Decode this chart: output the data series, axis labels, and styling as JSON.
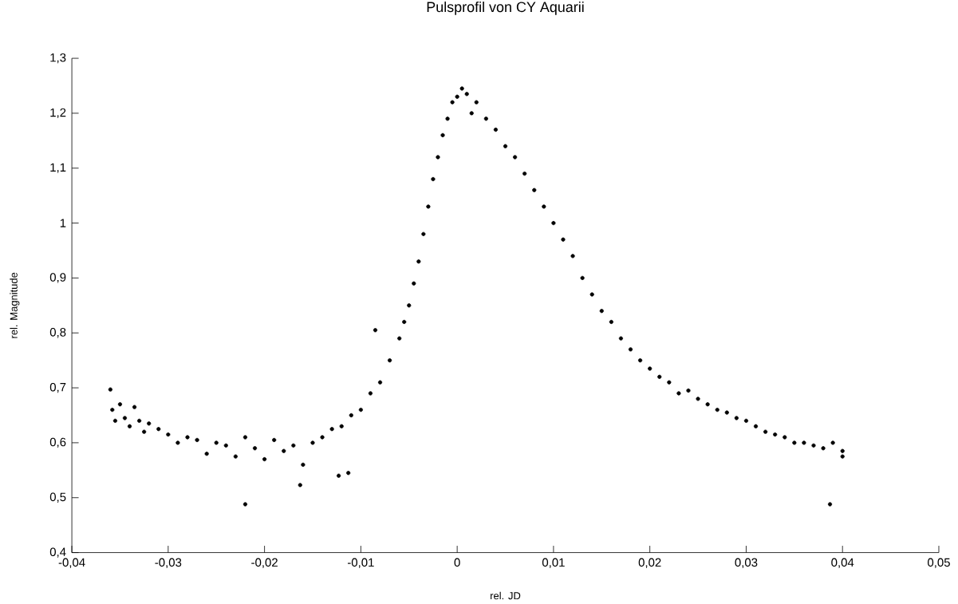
{
  "chart_data": {
    "type": "scatter",
    "title": "Pulsprofil von CY Aquarii",
    "xlabel": "rel. JD",
    "ylabel": "rel. Magnitude",
    "color": "#000000",
    "x": [
      -0.036,
      -0.0358,
      -0.0355,
      -0.035,
      -0.0345,
      -0.034,
      -0.0335,
      -0.033,
      -0.0325,
      -0.032,
      -0.031,
      -0.03,
      -0.029,
      -0.028,
      -0.027,
      -0.026,
      -0.025,
      -0.024,
      -0.023,
      -0.022,
      -0.022,
      -0.021,
      -0.02,
      -0.019,
      -0.018,
      -0.017,
      -0.0163,
      -0.016,
      -0.015,
      -0.014,
      -0.013,
      -0.0123,
      -0.012,
      -0.0113,
      -0.011,
      -0.01,
      -0.009,
      -0.0085,
      -0.008,
      -0.007,
      -0.006,
      -0.0055,
      -0.005,
      -0.0045,
      -0.004,
      -0.0035,
      -0.003,
      -0.0025,
      -0.002,
      -0.0015,
      -0.001,
      -0.0005,
      0.0,
      0.0005,
      0.001,
      0.0015,
      0.002,
      0.003,
      0.004,
      0.005,
      0.006,
      0.007,
      0.008,
      0.009,
      0.01,
      0.011,
      0.012,
      0.013,
      0.014,
      0.015,
      0.016,
      0.017,
      0.018,
      0.019,
      0.02,
      0.021,
      0.022,
      0.023,
      0.024,
      0.025,
      0.026,
      0.027,
      0.028,
      0.029,
      0.03,
      0.031,
      0.032,
      0.033,
      0.034,
      0.035,
      0.036,
      0.037,
      0.038,
      0.0387,
      0.039,
      0.04,
      0.04
    ],
    "values": [
      0.697,
      0.66,
      0.64,
      0.67,
      0.645,
      0.63,
      0.665,
      0.64,
      0.62,
      0.635,
      0.625,
      0.615,
      0.6,
      0.61,
      0.605,
      0.58,
      0.6,
      0.595,
      0.575,
      0.61,
      0.488,
      0.59,
      0.57,
      0.605,
      0.585,
      0.595,
      0.523,
      0.56,
      0.6,
      0.61,
      0.625,
      0.54,
      0.63,
      0.545,
      0.65,
      0.66,
      0.69,
      0.805,
      0.71,
      0.75,
      0.79,
      0.82,
      0.85,
      0.89,
      0.93,
      0.98,
      1.03,
      1.08,
      1.12,
      1.16,
      1.19,
      1.22,
      1.23,
      1.245,
      1.235,
      1.2,
      1.22,
      1.19,
      1.17,
      1.14,
      1.12,
      1.09,
      1.06,
      1.03,
      1.0,
      0.97,
      0.94,
      0.9,
      0.87,
      0.84,
      0.82,
      0.79,
      0.77,
      0.75,
      0.735,
      0.72,
      0.71,
      0.69,
      0.695,
      0.68,
      0.67,
      0.66,
      0.655,
      0.645,
      0.64,
      0.63,
      0.62,
      0.615,
      0.61,
      0.6,
      0.6,
      0.595,
      0.59,
      0.488,
      0.6,
      0.585,
      0.575
    ],
    "xlim": [
      -0.04,
      0.05
    ],
    "xticks": [
      {
        "value": -0.04,
        "label": "-0,04"
      },
      {
        "value": -0.03,
        "label": "-0,03"
      },
      {
        "value": -0.02,
        "label": "-0,02"
      },
      {
        "value": -0.01,
        "label": "-0,01"
      },
      0,
      {
        "value": 0.01,
        "label": "0,01"
      },
      {
        "value": 0.02,
        "label": "0,02"
      },
      {
        "value": 0.03,
        "label": "0,03"
      },
      {
        "value": 0.04,
        "label": "0,04"
      },
      {
        "value": 0.05,
        "label": "0,05"
      }
    ],
    "ylim": [
      0.4,
      1.3
    ],
    "yticks": [
      {
        "value": 0.4,
        "label": "0,4"
      },
      {
        "value": 0.5,
        "label": "0,5"
      },
      {
        "value": 0.6,
        "label": "0,6"
      },
      {
        "value": 0.7,
        "label": "0,7"
      },
      {
        "value": 0.8,
        "label": "0,8"
      },
      {
        "value": 0.9,
        "label": "0,9"
      },
      1,
      {
        "value": 1.1,
        "label": "1,1"
      },
      {
        "value": 1.2,
        "label": "1,2"
      },
      {
        "value": 1.3,
        "label": "1,3"
      }
    ]
  }
}
